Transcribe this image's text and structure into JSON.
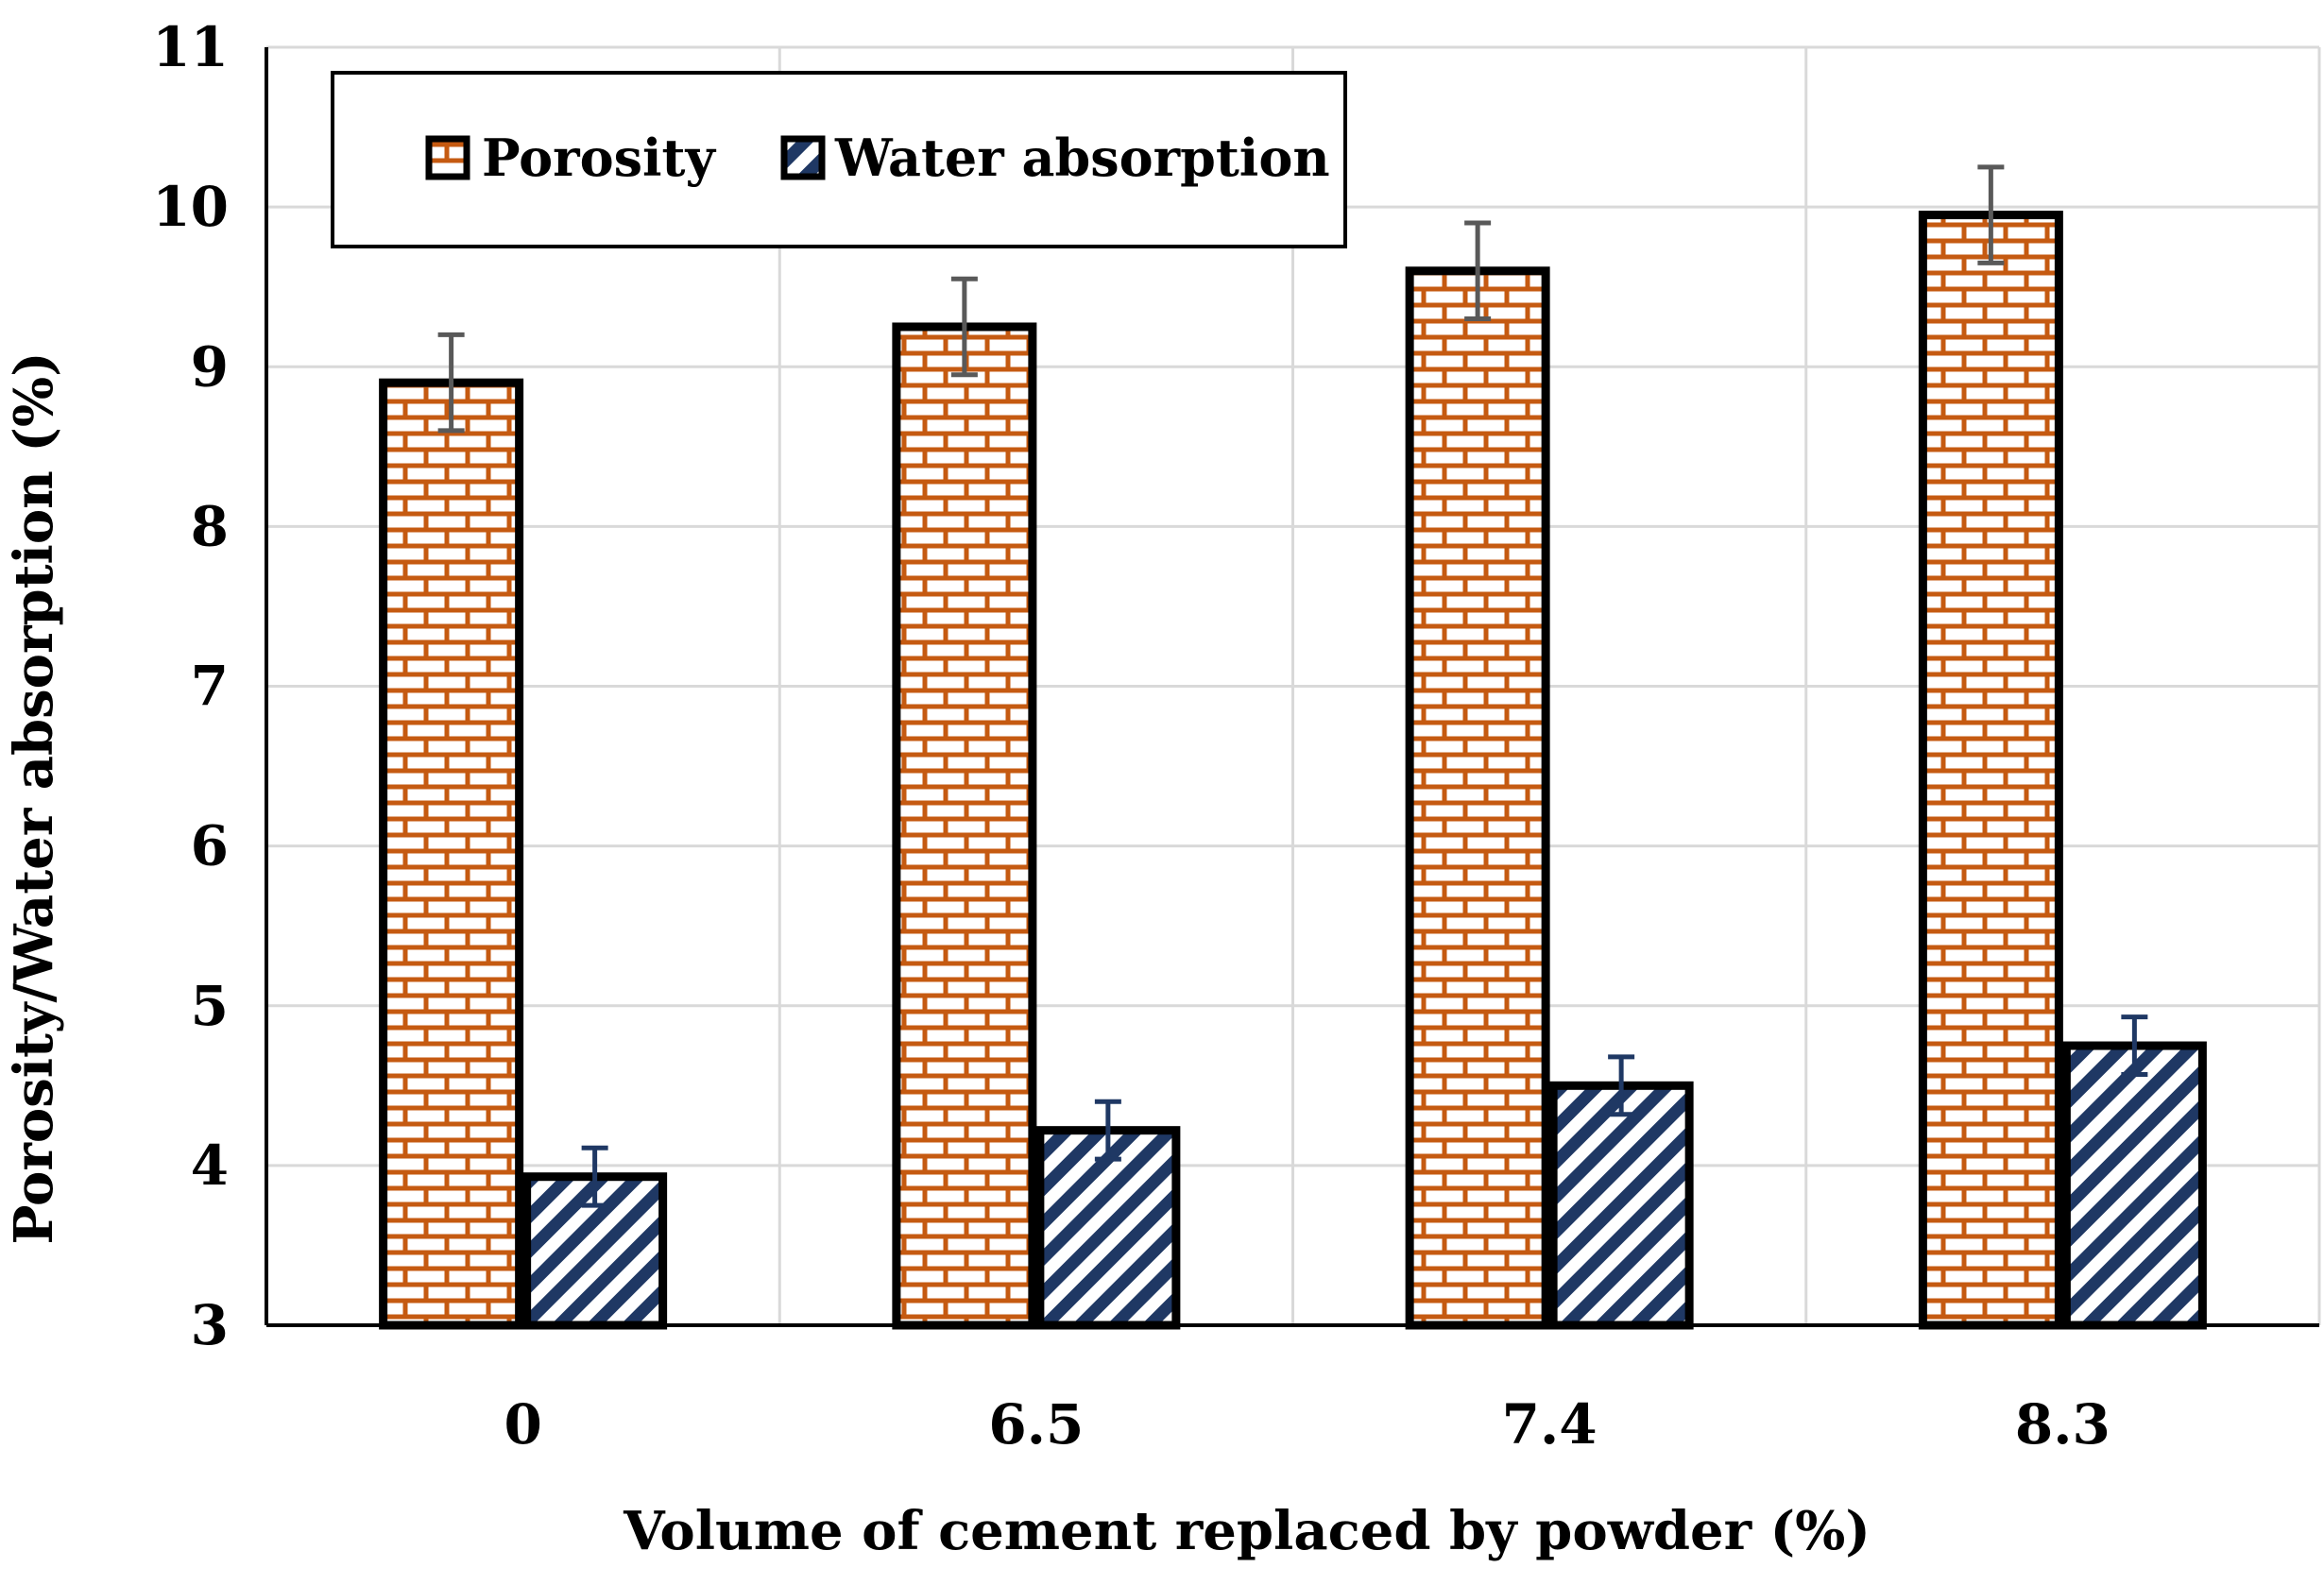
{
  "chart_data": {
    "type": "bar",
    "title": "",
    "xlabel": "Volume of cement replaced by powder (%)",
    "ylabel": "Porosity/Water absorption (%)",
    "categories": [
      "0",
      "6.5",
      "7.4",
      "8.3"
    ],
    "ylim": [
      3,
      11
    ],
    "yticks": [
      3,
      4,
      5,
      6,
      7,
      8,
      9,
      10,
      11
    ],
    "grid": true,
    "legend_position": "top-left",
    "series": [
      {
        "name": "Porosity",
        "values": [
          8.9,
          9.25,
          9.6,
          9.95
        ],
        "errors": [
          0.3,
          0.3,
          0.3,
          0.3
        ],
        "color": "#c55a11",
        "pattern": "brick"
      },
      {
        "name": "Water absorption",
        "values": [
          3.93,
          4.22,
          4.5,
          4.75
        ],
        "errors": [
          0.18,
          0.18,
          0.18,
          0.18
        ],
        "color": "#1f3864",
        "pattern": "diagonal-stripes"
      }
    ]
  }
}
